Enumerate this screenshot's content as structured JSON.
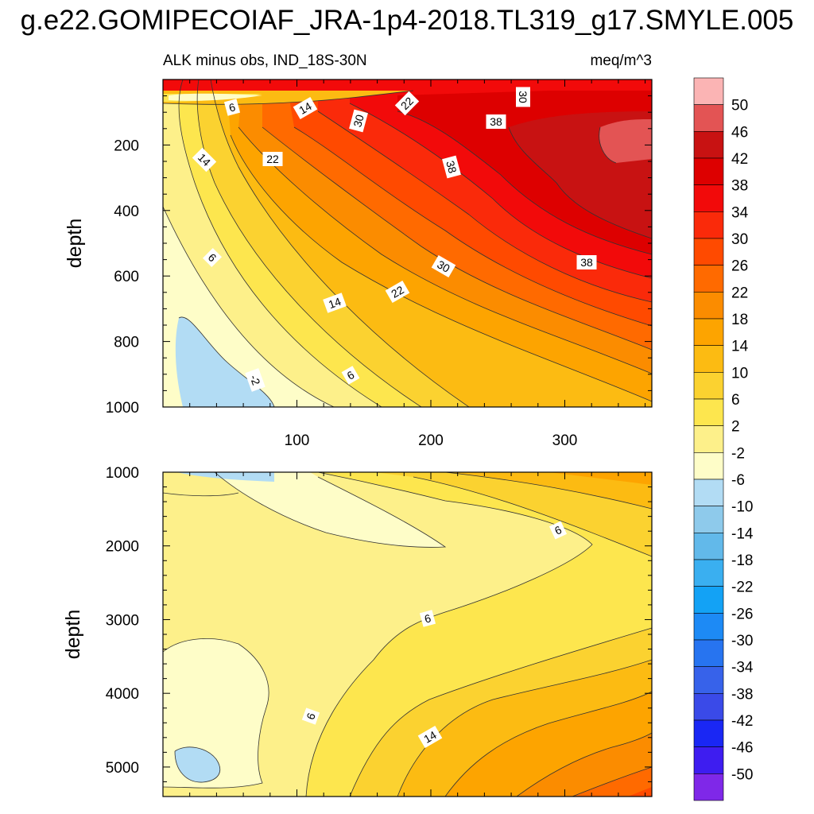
{
  "title": "g.e22.GOMIPECOIAF_JRA-1p4-2018.TL319_g17.SMYLE.005",
  "chart_data": {
    "type": "contour",
    "subtitle_left": "ALK minus obs, IND_18S-30N",
    "subtitle_right": "meq/m^3",
    "xlabel": "",
    "ylabel": "depth",
    "xlim": [
      0,
      365
    ],
    "x_ticks": [
      "100",
      "200",
      "300"
    ],
    "upper_panel": {
      "ylim": [
        0,
        1000
      ],
      "y_ticks": [
        "200",
        "400",
        "600",
        "800",
        "1000"
      ],
      "contour_labels": [
        "6",
        "14",
        "22",
        "30",
        "30",
        "38",
        "14",
        "22",
        "38",
        "38",
        "6",
        "30",
        "22",
        "14",
        "6",
        "-2"
      ]
    },
    "lower_panel": {
      "ylim": [
        1000,
        5400
      ],
      "y_ticks": [
        "1000",
        "2000",
        "3000",
        "4000",
        "5000"
      ],
      "contour_labels": [
        "6",
        "6",
        "6",
        "14"
      ]
    },
    "colorbar": {
      "levels": [
        "50",
        "46",
        "42",
        "38",
        "34",
        "30",
        "26",
        "22",
        "18",
        "14",
        "10",
        "6",
        "2",
        "-2",
        "-6",
        "-10",
        "-14",
        "-18",
        "-22",
        "-26",
        "-30",
        "-34",
        "-38",
        "-42",
        "-46",
        "-50"
      ],
      "colors": [
        "#fbb4b4",
        "#e35454",
        "#c81212",
        "#dd0000",
        "#f20a0a",
        "#fa2a0a",
        "#ff4a00",
        "#ff6a00",
        "#fb8c00",
        "#fda400",
        "#fcbb12",
        "#fbd230",
        "#fde64e",
        "#fdf08a",
        "#fefdc8",
        "#b2dcf4",
        "#8ecaeb",
        "#62b9ea",
        "#3aaff0",
        "#13a2f5",
        "#1d8af5",
        "#2774f0",
        "#3762ea",
        "#3a4ae8",
        "#1a27f4",
        "#3e1df0",
        "#7f28e8"
      ]
    }
  }
}
